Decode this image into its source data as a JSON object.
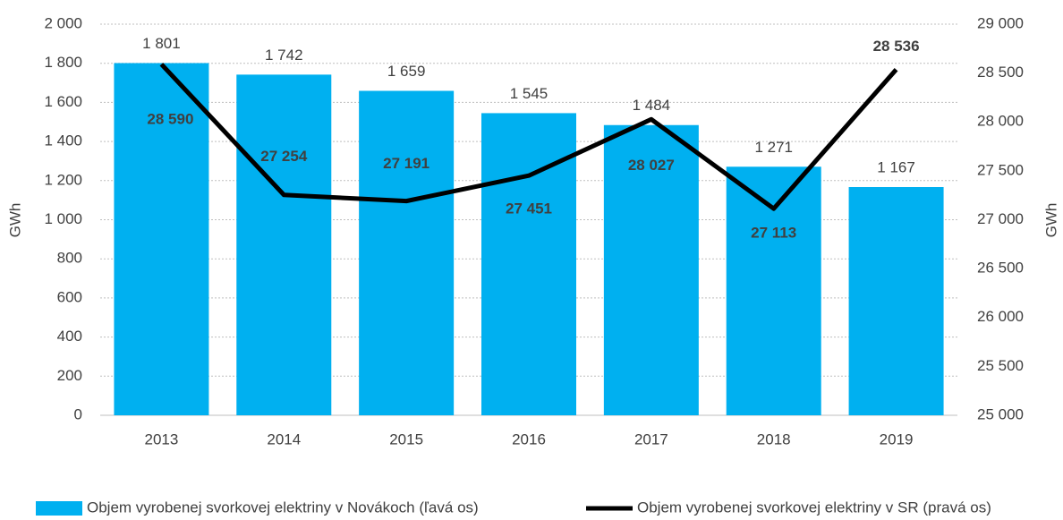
{
  "chart_data": {
    "type": "bar_line",
    "categories": [
      "2013",
      "2014",
      "2015",
      "2016",
      "2017",
      "2018",
      "2019"
    ],
    "series": [
      {
        "name": "Objem vyrobenej svorkovej elektriny v Novákoch (ľavá os)",
        "type": "bar",
        "color": "#00b0f0",
        "values": [
          1801,
          1742,
          1659,
          1545,
          1484,
          1271,
          1167
        ],
        "value_labels": [
          "1 801",
          "1 742",
          "1 659",
          "1 545",
          "1 484",
          "1 271",
          "1 167"
        ]
      },
      {
        "name": "Objem vyrobenej svorkovej elektriny v SR (pravá os)",
        "type": "line",
        "color": "#000000",
        "axis": "y2",
        "values": [
          28590,
          27254,
          27191,
          27451,
          28027,
          27113,
          28536
        ],
        "value_labels": [
          "28 590",
          "27 254",
          "27 191",
          "27 451",
          "28 027",
          "27 113",
          "28 536"
        ]
      }
    ],
    "ylabel": "GWh",
    "y2label": "GWh",
    "ylim": [
      0,
      2000
    ],
    "yticks": [
      0,
      200,
      400,
      600,
      800,
      {
        "value": 1000,
        "label": "1 000"
      },
      {
        "value": 1200,
        "label": "1 200"
      },
      {
        "value": 1400,
        "label": "1 400"
      },
      {
        "value": 1600,
        "label": "1 600"
      },
      {
        "value": 1800,
        "label": "1 800"
      },
      {
        "value": 2000,
        "label": "2 000"
      }
    ],
    "y2lim": [
      25000,
      29000
    ],
    "y2ticks": [
      {
        "value": 25000,
        "label": "25 000"
      },
      {
        "value": 25500,
        "label": "25 500"
      },
      {
        "value": 26000,
        "label": "26 000"
      },
      {
        "value": 26500,
        "label": "26 500"
      },
      {
        "value": 27000,
        "label": "27 000"
      },
      {
        "value": 27500,
        "label": "27 500"
      },
      {
        "value": 28000,
        "label": "28 000"
      },
      {
        "value": 28500,
        "label": "28 500"
      },
      {
        "value": 29000,
        "label": "29 000"
      }
    ],
    "grid": true,
    "legend": "bottom"
  }
}
